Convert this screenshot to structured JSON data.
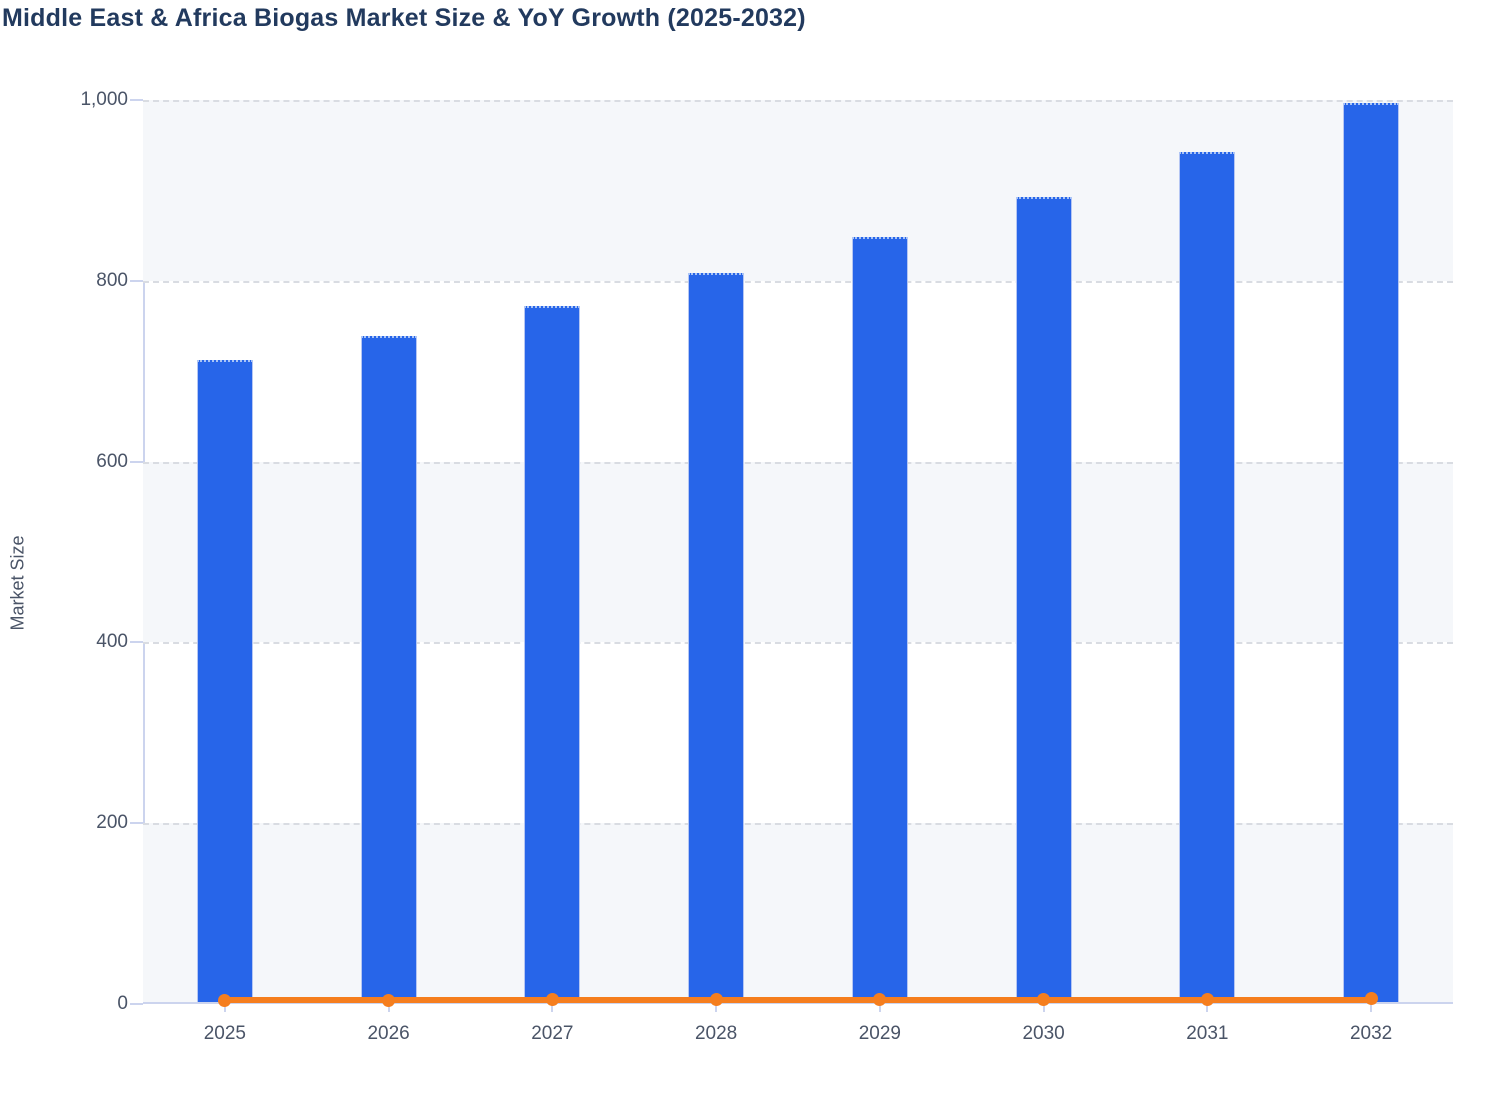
{
  "title": "Middle East & Africa Biogas Market Size & YoY Growth (2025-2032)",
  "y_axis": {
    "label": "Market Size",
    "ticks": [
      "1,000",
      "800",
      "600",
      "400",
      "200",
      "0"
    ]
  },
  "colors": {
    "bar": "#2765e9",
    "bar_edge": "#b5c6f3",
    "bar_top_edge": "#a9c4f6",
    "line": "#f57e1e",
    "title_text": "#223a5e",
    "axis_line": "#ccd4ee",
    "gridline": "#d9dce2",
    "band": "#f5f7fa",
    "tick_text": "#4a5467"
  },
  "chart_data": {
    "type": "bar+line",
    "title": "Middle East & Africa Biogas Market Size & YoY Growth (2025-2032)",
    "categories": [
      "2025",
      "2026",
      "2027",
      "2028",
      "2029",
      "2030",
      "2031",
      "2032"
    ],
    "series": [
      {
        "name": "Market Size",
        "kind": "bar",
        "color": "#2765e9",
        "values": [
          712,
          739,
          772,
          809,
          848,
          893,
          942,
          997
        ]
      },
      {
        "name": "YoY Growth",
        "kind": "line",
        "color": "#f57e1e",
        "values": [
          3.5,
          3.8,
          4.5,
          4.8,
          4.8,
          5.3,
          5.5,
          5.8
        ],
        "note": "plotted on the same 0-1000 axis, so the line appears flat just above zero"
      }
    ],
    "xlabel": "",
    "ylabel": "Market Size",
    "ylim": [
      0,
      1000
    ],
    "grid": "horizontal dashed gridlines every 200 with alternating light band fills",
    "legend": "none"
  }
}
